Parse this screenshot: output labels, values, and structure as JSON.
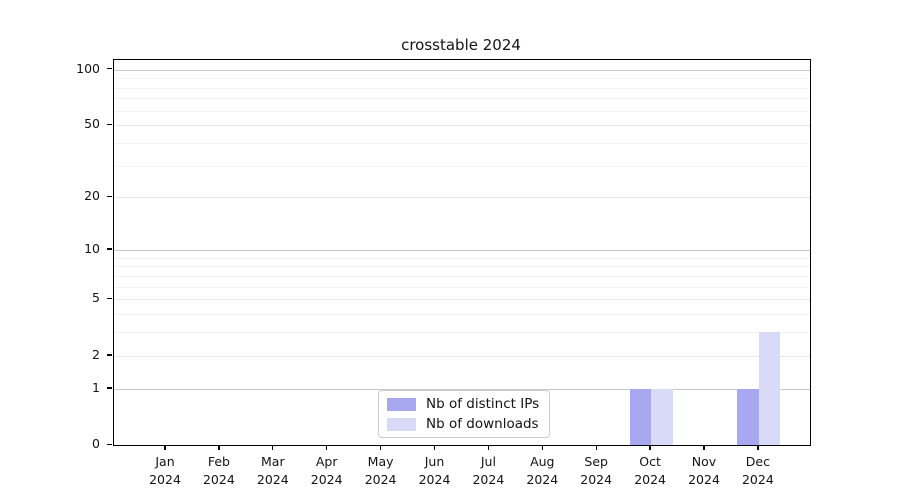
{
  "title": "crosstable 2024",
  "colors": {
    "ips_bar": "#a8a8f0",
    "downloads_bar": "#d9d9f8",
    "grid_power": "#c9c9c9",
    "grid_major": "#e7e7e7",
    "grid_minor": "#f2f2f2",
    "spine": "#000000",
    "text": "#141414"
  },
  "legend": {
    "items": [
      {
        "label": "Nb of distinct IPs",
        "color": "#a8a8f0"
      },
      {
        "label": "Nb of downloads",
        "color": "#d9d9f8"
      }
    ]
  },
  "chart_data": {
    "type": "bar",
    "title": "crosstable 2024",
    "categories": [
      "Jan 2024",
      "Feb 2024",
      "Mar 2024",
      "Apr 2024",
      "May 2024",
      "Jun 2024",
      "Jul 2024",
      "Aug 2024",
      "Sep 2024",
      "Oct 2024",
      "Nov 2024",
      "Dec 2024"
    ],
    "series": [
      {
        "name": "Nb of distinct IPs",
        "color": "#a8a8f0",
        "values": [
          0,
          0,
          0,
          0,
          0,
          0,
          0,
          0,
          0,
          1,
          0,
          1
        ]
      },
      {
        "name": "Nb of downloads",
        "color": "#d9d9f8",
        "values": [
          0,
          0,
          0,
          0,
          0,
          0,
          0,
          0,
          0,
          1,
          0,
          3
        ]
      }
    ],
    "xlabel": "",
    "ylabel": "",
    "yscale": "log1p",
    "ylim": [
      0,
      112
    ],
    "yticks_major": [
      0,
      1,
      2,
      5,
      10,
      20,
      50,
      100
    ],
    "yticks_minor": [
      3,
      4,
      6,
      7,
      8,
      9,
      30,
      40,
      60,
      70,
      80,
      90
    ],
    "grid": "horizontal",
    "legend_position": "lower-center"
  }
}
